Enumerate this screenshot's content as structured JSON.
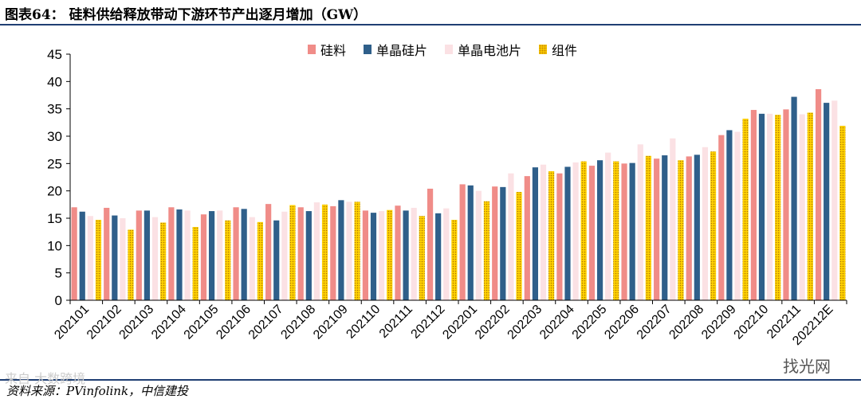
{
  "header": {
    "title": "图表64：  硅料供给释放带动下游环节产出逐月增加（GW）"
  },
  "footer": {
    "source": "资料来源：PVinfolink，中信建投",
    "watermark_left": "来自  大数跨境",
    "watermark_right": "找光网"
  },
  "colors": {
    "silicon": "#f08c88",
    "mono_wafer": "#2f5f8a",
    "mono_cell": "#fbe1e4",
    "module": "#ffd200",
    "module_dot": "#c98a00",
    "rule": "#1f3f73"
  },
  "chart_data": {
    "type": "bar",
    "title": "",
    "xlabel": "",
    "ylabel": "",
    "ylim": [
      0,
      45
    ],
    "yticks": [
      0,
      5,
      10,
      15,
      20,
      25,
      30,
      35,
      40,
      45
    ],
    "legend_position": "top",
    "categories": [
      "202101",
      "202102",
      "202103",
      "202104",
      "202105",
      "202106",
      "202107",
      "202108",
      "202109",
      "202110",
      "202111",
      "202112",
      "202201",
      "202202",
      "202203",
      "202204",
      "202205",
      "202206",
      "202207",
      "202208",
      "202209",
      "202210",
      "202211",
      "202212E"
    ],
    "series": [
      {
        "name": "硅料",
        "values": [
          17.0,
          16.9,
          16.4,
          17.0,
          15.7,
          17.0,
          17.6,
          17.0,
          17.2,
          16.4,
          17.3,
          20.4,
          21.2,
          20.8,
          22.7,
          23.2,
          24.6,
          25.0,
          25.9,
          26.3,
          30.2,
          34.8,
          34.9,
          38.6
        ]
      },
      {
        "name": "单晶硅片",
        "values": [
          16.2,
          15.5,
          16.4,
          16.6,
          16.3,
          16.7,
          14.6,
          16.3,
          18.3,
          16.0,
          16.4,
          15.9,
          21.0,
          20.7,
          24.3,
          24.4,
          25.6,
          25.1,
          26.5,
          26.6,
          31.1,
          34.1,
          37.2,
          36.1
        ]
      },
      {
        "name": "单晶电池片",
        "values": [
          15.4,
          15.0,
          15.2,
          16.4,
          16.4,
          15.2,
          16.2,
          17.9,
          18.0,
          16.3,
          16.9,
          16.8,
          20.0,
          23.2,
          24.8,
          25.2,
          27.0,
          28.5,
          29.6,
          28.0,
          30.8,
          34.1,
          34.0,
          36.5
        ]
      },
      {
        "name": "组件",
        "values": [
          14.7,
          12.9,
          14.2,
          13.4,
          14.6,
          14.3,
          17.4,
          17.5,
          18.0,
          16.5,
          15.4,
          14.7,
          18.1,
          19.8,
          23.6,
          25.4,
          25.4,
          26.4,
          25.6,
          27.2,
          33.2,
          33.9,
          34.3,
          31.9
        ]
      }
    ]
  }
}
